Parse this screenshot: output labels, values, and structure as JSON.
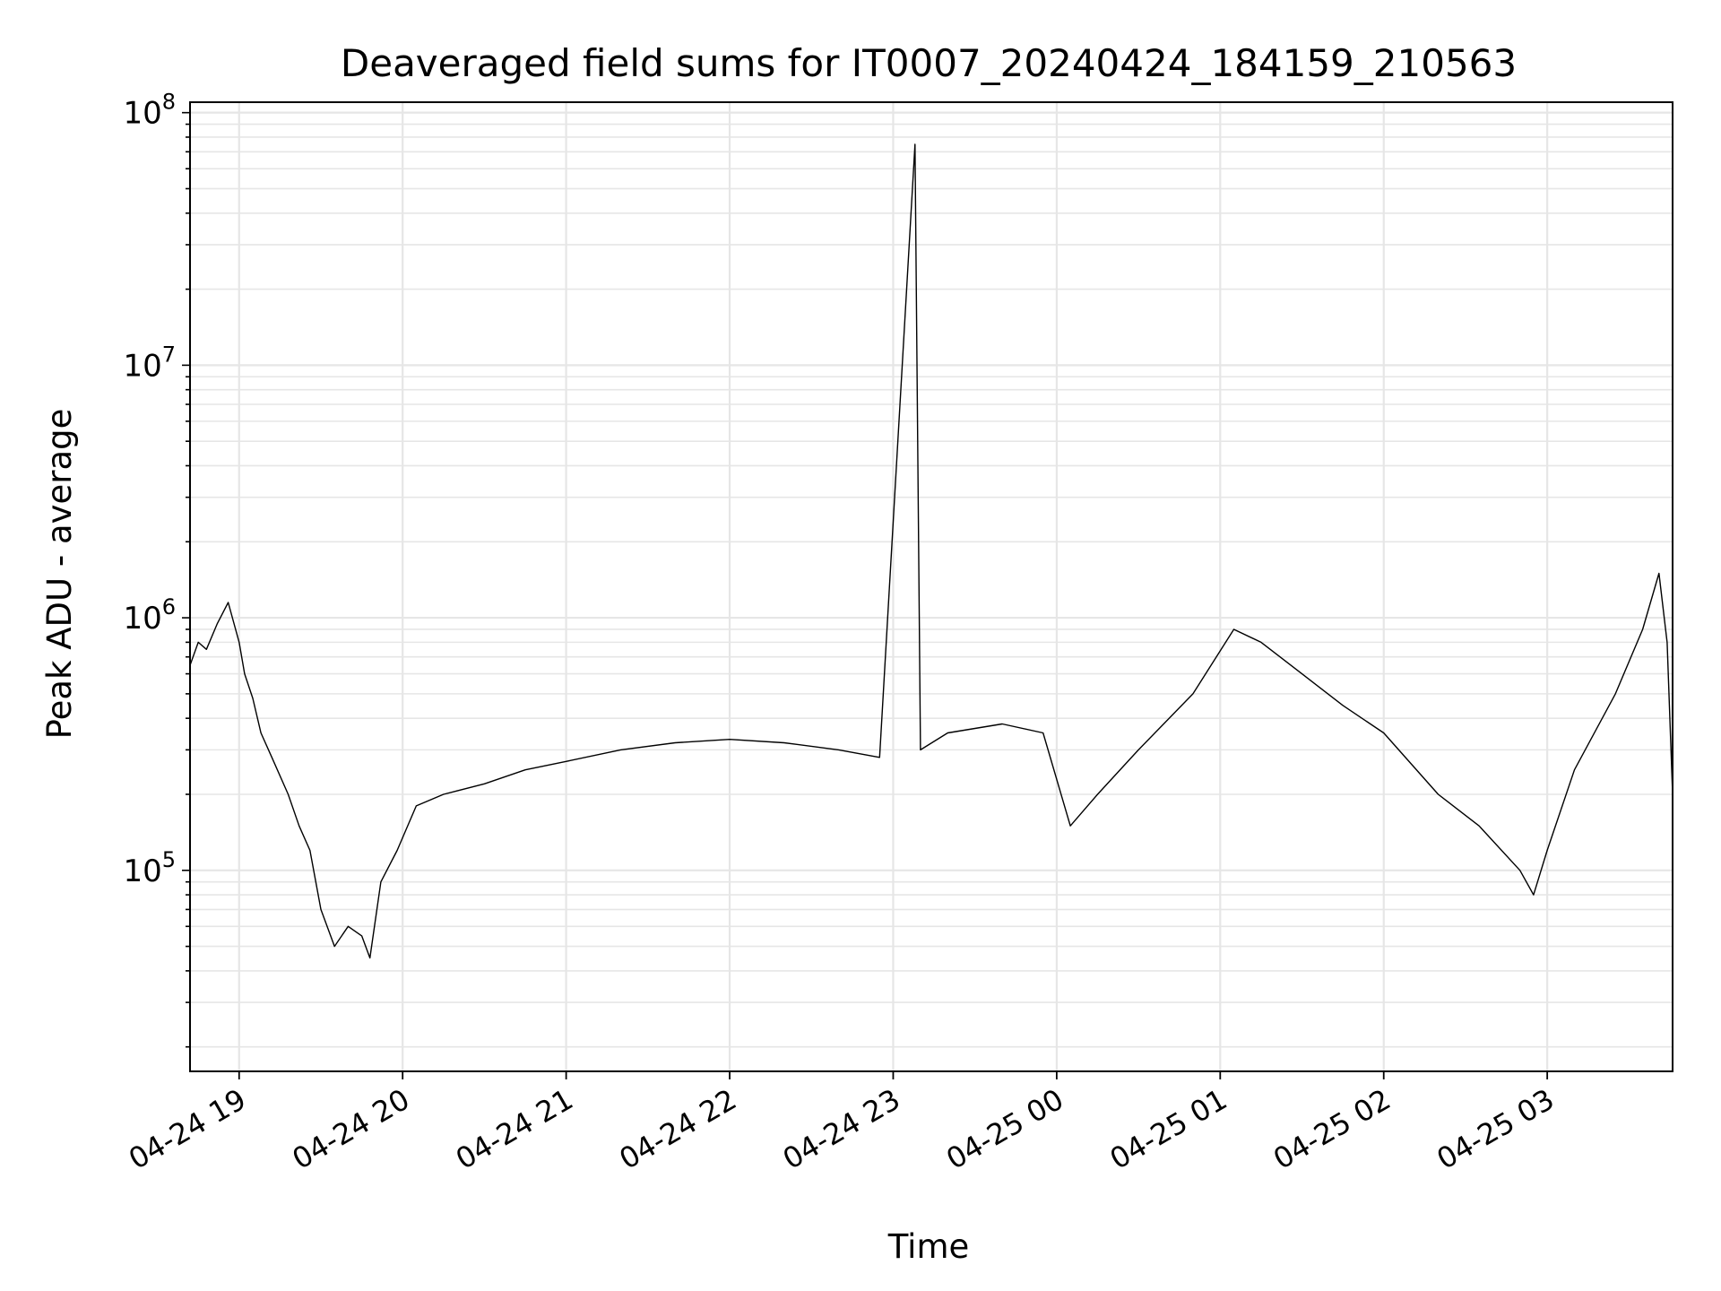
{
  "chart_data": {
    "type": "line",
    "title": "Deaveraged field sums for IT0007_20240424_184159_210563",
    "xlabel": "Time",
    "ylabel": "Peak ADU - average",
    "yscale": "log",
    "grid": true,
    "x_range": [
      "2024-04-24 18:41:59",
      "2024-04-25 03:46:00"
    ],
    "ylim": [
      16000,
      110000000
    ],
    "x_ticks": [
      {
        "time": "2024-04-24 19:00",
        "label": "04-24 19"
      },
      {
        "time": "2024-04-24 20:00",
        "label": "04-24 20"
      },
      {
        "time": "2024-04-24 21:00",
        "label": "04-24 21"
      },
      {
        "time": "2024-04-24 22:00",
        "label": "04-24 22"
      },
      {
        "time": "2024-04-24 23:00",
        "label": "04-24 23"
      },
      {
        "time": "2024-04-25 00:00",
        "label": "04-25 00"
      },
      {
        "time": "2024-04-25 01:00",
        "label": "04-25 01"
      },
      {
        "time": "2024-04-25 02:00",
        "label": "04-25 02"
      },
      {
        "time": "2024-04-25 03:00",
        "label": "04-25 03"
      }
    ],
    "y_ticks": [
      {
        "value": 100000,
        "base": "10",
        "exp": "5"
      },
      {
        "value": 1000000,
        "base": "10",
        "exp": "6"
      },
      {
        "value": 10000000,
        "base": "10",
        "exp": "7"
      },
      {
        "value": 100000000,
        "base": "10",
        "exp": "8"
      }
    ],
    "series": [
      {
        "color": "#000000",
        "points": [
          [
            "2024-04-24 18:42",
            650000
          ],
          [
            "2024-04-24 18:45",
            800000
          ],
          [
            "2024-04-24 18:48",
            750000
          ],
          [
            "2024-04-24 18:52",
            950000
          ],
          [
            "2024-04-24 18:56",
            1150000
          ],
          [
            "2024-04-24 19:00",
            800000
          ],
          [
            "2024-04-24 19:02",
            600000
          ],
          [
            "2024-04-24 19:05",
            480000
          ],
          [
            "2024-04-24 19:08",
            350000
          ],
          [
            "2024-04-24 19:12",
            280000
          ],
          [
            "2024-04-24 19:18",
            200000
          ],
          [
            "2024-04-24 19:22",
            150000
          ],
          [
            "2024-04-24 19:26",
            120000
          ],
          [
            "2024-04-24 19:30",
            70000
          ],
          [
            "2024-04-24 19:35",
            50000
          ],
          [
            "2024-04-24 19:40",
            60000
          ],
          [
            "2024-04-24 19:45",
            55000
          ],
          [
            "2024-04-24 19:48",
            45000
          ],
          [
            "2024-04-24 19:52",
            90000
          ],
          [
            "2024-04-24 19:58",
            120000
          ],
          [
            "2024-04-24 20:05",
            180000
          ],
          [
            "2024-04-24 20:15",
            200000
          ],
          [
            "2024-04-24 20:30",
            220000
          ],
          [
            "2024-04-24 20:45",
            250000
          ],
          [
            "2024-04-24 21:00",
            270000
          ],
          [
            "2024-04-24 21:20",
            300000
          ],
          [
            "2024-04-24 21:40",
            320000
          ],
          [
            "2024-04-24 22:00",
            330000
          ],
          [
            "2024-04-24 22:20",
            320000
          ],
          [
            "2024-04-24 22:40",
            300000
          ],
          [
            "2024-04-24 22:55",
            280000
          ],
          [
            "2024-04-24 23:08",
            75000000
          ],
          [
            "2024-04-24 23:10",
            300000
          ],
          [
            "2024-04-24 23:20",
            350000
          ],
          [
            "2024-04-24 23:40",
            380000
          ],
          [
            "2024-04-24 23:55",
            350000
          ],
          [
            "2024-04-25 00:05",
            150000
          ],
          [
            "2024-04-25 00:15",
            200000
          ],
          [
            "2024-04-25 00:30",
            300000
          ],
          [
            "2024-04-25 00:50",
            500000
          ],
          [
            "2024-04-25 01:05",
            900000
          ],
          [
            "2024-04-25 01:15",
            800000
          ],
          [
            "2024-04-25 01:30",
            600000
          ],
          [
            "2024-04-25 01:45",
            450000
          ],
          [
            "2024-04-25 02:00",
            350000
          ],
          [
            "2024-04-25 02:20",
            200000
          ],
          [
            "2024-04-25 02:35",
            150000
          ],
          [
            "2024-04-25 02:50",
            100000
          ],
          [
            "2024-04-25 02:55",
            80000
          ],
          [
            "2024-04-25 03:00",
            120000
          ],
          [
            "2024-04-25 03:10",
            250000
          ],
          [
            "2024-04-25 03:25",
            500000
          ],
          [
            "2024-04-25 03:35",
            900000
          ],
          [
            "2024-04-25 03:41",
            1500000
          ],
          [
            "2024-04-25 03:44",
            800000
          ],
          [
            "2024-04-25 03:46",
            200000
          ]
        ]
      }
    ]
  }
}
